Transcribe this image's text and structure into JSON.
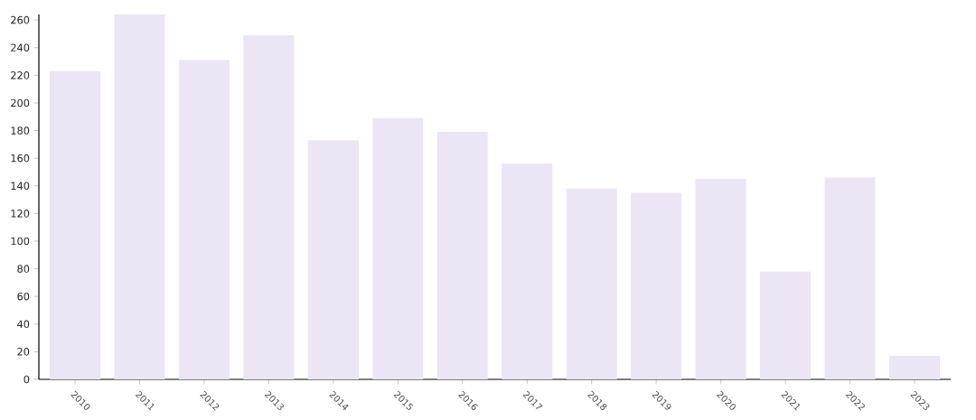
{
  "chart_data": {
    "type": "bar",
    "categories": [
      "2010",
      "2011",
      "2012",
      "2013",
      "2014",
      "2015",
      "2016",
      "2017",
      "2018",
      "2019",
      "2020",
      "2021",
      "2022",
      "2023"
    ],
    "values": [
      223,
      264,
      231,
      249,
      173,
      189,
      179,
      156,
      138,
      135,
      145,
      78,
      146,
      17
    ],
    "color": "#ebe5f5",
    "ylim": [
      0,
      264
    ],
    "yticks": [
      0,
      20,
      40,
      60,
      80,
      100,
      120,
      140,
      160,
      180,
      200,
      220,
      240,
      260
    ],
    "grid": false
  }
}
